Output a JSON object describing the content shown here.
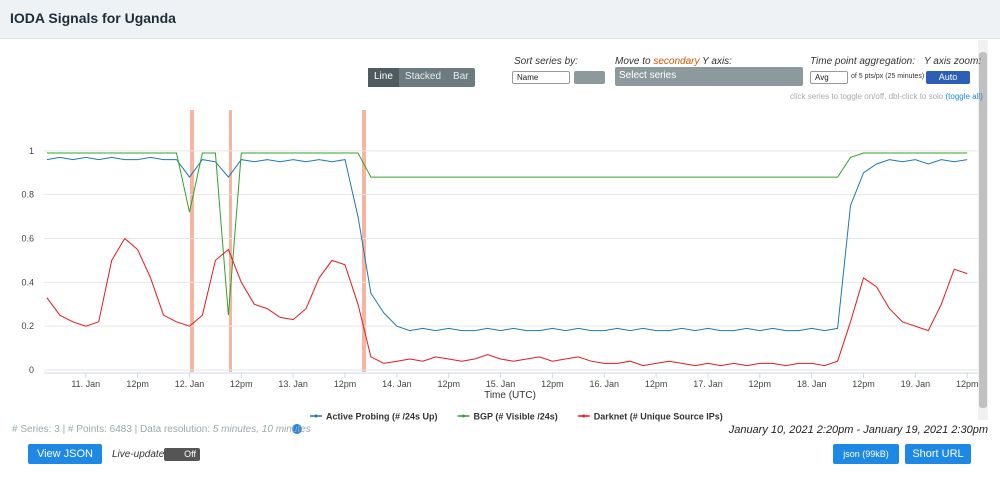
{
  "header": {
    "title": "IODA Signals for Uganda"
  },
  "controls": {
    "chart_types": [
      "Line",
      "Stacked",
      "Bar"
    ],
    "sort_label": "Sort series by:",
    "sort_value": "Name",
    "secondary_label": [
      "Move to",
      "secondary",
      "Y axis:"
    ],
    "series_select": "Select series",
    "aggregation_label": "Time point aggregation:",
    "aggregation_value": "Avg",
    "aggregation_note": "of 5 pts/px (25 minutes)",
    "zoom_label": "Y axis zoom:",
    "zoom_value": "Auto",
    "hint": "click series to toggle on/off, dbl-click to solo",
    "hint_link": "(toggle all)"
  },
  "chart_data": {
    "type": "line",
    "x_label": "Time (UTC)",
    "x": [
      "2021-01-10T15:00",
      "2021-01-10T18:00",
      "2021-01-10T21:00",
      "2021-01-11T00:00",
      "2021-01-11T03:00",
      "2021-01-11T06:00",
      "2021-01-11T09:00",
      "2021-01-11T12:00",
      "2021-01-11T15:00",
      "2021-01-11T18:00",
      "2021-01-11T21:00",
      "2021-01-12T00:00",
      "2021-01-12T03:00",
      "2021-01-12T06:00",
      "2021-01-12T09:00",
      "2021-01-12T12:00",
      "2021-01-12T15:00",
      "2021-01-12T18:00",
      "2021-01-12T21:00",
      "2021-01-13T00:00",
      "2021-01-13T03:00",
      "2021-01-13T06:00",
      "2021-01-13T09:00",
      "2021-01-13T12:00",
      "2021-01-13T15:00",
      "2021-01-13T18:00",
      "2021-01-13T21:00",
      "2021-01-14T00:00",
      "2021-01-14T03:00",
      "2021-01-14T06:00",
      "2021-01-14T09:00",
      "2021-01-14T12:00",
      "2021-01-14T15:00",
      "2021-01-14T18:00",
      "2021-01-14T21:00",
      "2021-01-15T00:00",
      "2021-01-15T03:00",
      "2021-01-15T06:00",
      "2021-01-15T09:00",
      "2021-01-15T12:00",
      "2021-01-15T15:00",
      "2021-01-15T18:00",
      "2021-01-15T21:00",
      "2021-01-16T00:00",
      "2021-01-16T03:00",
      "2021-01-16T06:00",
      "2021-01-16T09:00",
      "2021-01-16T12:00",
      "2021-01-16T15:00",
      "2021-01-16T18:00",
      "2021-01-16T21:00",
      "2021-01-17T00:00",
      "2021-01-17T03:00",
      "2021-01-17T06:00",
      "2021-01-17T09:00",
      "2021-01-17T12:00",
      "2021-01-17T15:00",
      "2021-01-17T18:00",
      "2021-01-17T21:00",
      "2021-01-18T00:00",
      "2021-01-18T03:00",
      "2021-01-18T06:00",
      "2021-01-18T09:00",
      "2021-01-18T12:00",
      "2021-01-18T15:00",
      "2021-01-18T18:00",
      "2021-01-18T21:00",
      "2021-01-19T00:00",
      "2021-01-19T03:00",
      "2021-01-19T06:00",
      "2021-01-19T09:00",
      "2021-01-19T12:00"
    ],
    "xlim": [
      "2021-01-10T14:20",
      "2021-01-19T14:30"
    ],
    "xticks": [
      {
        "value": "2021-01-11T00:00",
        "label": "11. Jan"
      },
      {
        "value": "2021-01-11T12:00",
        "label": "12pm"
      },
      {
        "value": "2021-01-12T00:00",
        "label": "12. Jan"
      },
      {
        "value": "2021-01-12T12:00",
        "label": "12pm"
      },
      {
        "value": "2021-01-13T00:00",
        "label": "13. Jan"
      },
      {
        "value": "2021-01-13T12:00",
        "label": "12pm"
      },
      {
        "value": "2021-01-14T00:00",
        "label": "14. Jan"
      },
      {
        "value": "2021-01-14T12:00",
        "label": "12pm"
      },
      {
        "value": "2021-01-15T00:00",
        "label": "15. Jan"
      },
      {
        "value": "2021-01-15T12:00",
        "label": "12pm"
      },
      {
        "value": "2021-01-16T00:00",
        "label": "16. Jan"
      },
      {
        "value": "2021-01-16T12:00",
        "label": "12pm"
      },
      {
        "value": "2021-01-17T00:00",
        "label": "17. Jan"
      },
      {
        "value": "2021-01-17T12:00",
        "label": "12pm"
      },
      {
        "value": "2021-01-18T00:00",
        "label": "18. Jan"
      },
      {
        "value": "2021-01-18T12:00",
        "label": "12pm"
      },
      {
        "value": "2021-01-19T00:00",
        "label": "19. Jan"
      },
      {
        "value": "2021-01-19T12:00",
        "label": "12pm"
      }
    ],
    "ylim": [
      0,
      1.2
    ],
    "yticks": [
      0,
      0.2,
      0.4,
      0.6,
      0.8,
      1
    ],
    "grid": true,
    "series": [
      {
        "name": "Active Probing (# /24s Up)",
        "color": "#1f78b4",
        "values": [
          0.96,
          0.97,
          0.96,
          0.97,
          0.96,
          0.97,
          0.96,
          0.96,
          0.97,
          0.96,
          0.96,
          0.88,
          0.96,
          0.95,
          0.88,
          0.96,
          0.95,
          0.96,
          0.95,
          0.96,
          0.95,
          0.96,
          0.95,
          0.96,
          0.7,
          0.35,
          0.26,
          0.2,
          0.18,
          0.19,
          0.18,
          0.19,
          0.18,
          0.18,
          0.19,
          0.18,
          0.19,
          0.18,
          0.18,
          0.19,
          0.18,
          0.19,
          0.18,
          0.18,
          0.19,
          0.18,
          0.19,
          0.18,
          0.18,
          0.19,
          0.18,
          0.19,
          0.18,
          0.18,
          0.19,
          0.18,
          0.19,
          0.18,
          0.18,
          0.19,
          0.18,
          0.19,
          0.75,
          0.9,
          0.94,
          0.96,
          0.95,
          0.96,
          0.94,
          0.96,
          0.95,
          0.96
        ]
      },
      {
        "name": "BGP (# Visible /24s)",
        "color": "#33a02c",
        "values": [
          0.99,
          0.99,
          0.99,
          0.99,
          0.99,
          0.99,
          0.99,
          0.99,
          0.99,
          0.99,
          0.99,
          0.72,
          0.99,
          0.99,
          0.25,
          0.99,
          0.99,
          0.99,
          0.99,
          0.99,
          0.99,
          0.99,
          0.99,
          0.99,
          0.99,
          0.88,
          0.88,
          0.88,
          0.88,
          0.88,
          0.88,
          0.88,
          0.88,
          0.88,
          0.88,
          0.88,
          0.88,
          0.88,
          0.88,
          0.88,
          0.88,
          0.88,
          0.88,
          0.88,
          0.88,
          0.88,
          0.88,
          0.88,
          0.88,
          0.88,
          0.88,
          0.88,
          0.88,
          0.88,
          0.88,
          0.88,
          0.88,
          0.88,
          0.88,
          0.88,
          0.88,
          0.88,
          0.97,
          0.99,
          0.99,
          0.99,
          0.99,
          0.99,
          0.99,
          0.99,
          0.99,
          0.99
        ]
      },
      {
        "name": "Darknet (# Unique Source IPs)",
        "color": "#e31a1c",
        "values": [
          0.33,
          0.25,
          0.22,
          0.2,
          0.22,
          0.5,
          0.6,
          0.55,
          0.42,
          0.25,
          0.22,
          0.2,
          0.25,
          0.5,
          0.55,
          0.4,
          0.3,
          0.28,
          0.24,
          0.23,
          0.28,
          0.42,
          0.5,
          0.48,
          0.3,
          0.06,
          0.03,
          0.04,
          0.05,
          0.04,
          0.06,
          0.05,
          0.04,
          0.05,
          0.07,
          0.05,
          0.04,
          0.05,
          0.06,
          0.04,
          0.05,
          0.06,
          0.04,
          0.03,
          0.03,
          0.04,
          0.02,
          0.03,
          0.04,
          0.03,
          0.02,
          0.03,
          0.02,
          0.03,
          0.02,
          0.03,
          0.03,
          0.02,
          0.03,
          0.03,
          0.02,
          0.04,
          0.22,
          0.42,
          0.38,
          0.28,
          0.22,
          0.2,
          0.18,
          0.3,
          0.46,
          0.44
        ]
      }
    ]
  },
  "footer": {
    "stats": "# Series: 3 | # Points: 6483 | Data resolution:",
    "resolution": "5 minutes, 10 minutes",
    "range": "January 10, 2021 2:20pm - January 19, 2021 2:30pm",
    "view_json": "View JSON",
    "live_label": "Live-update:",
    "live_value": "Off",
    "json_button": "json (99kB)",
    "short_url": "Short URL"
  }
}
